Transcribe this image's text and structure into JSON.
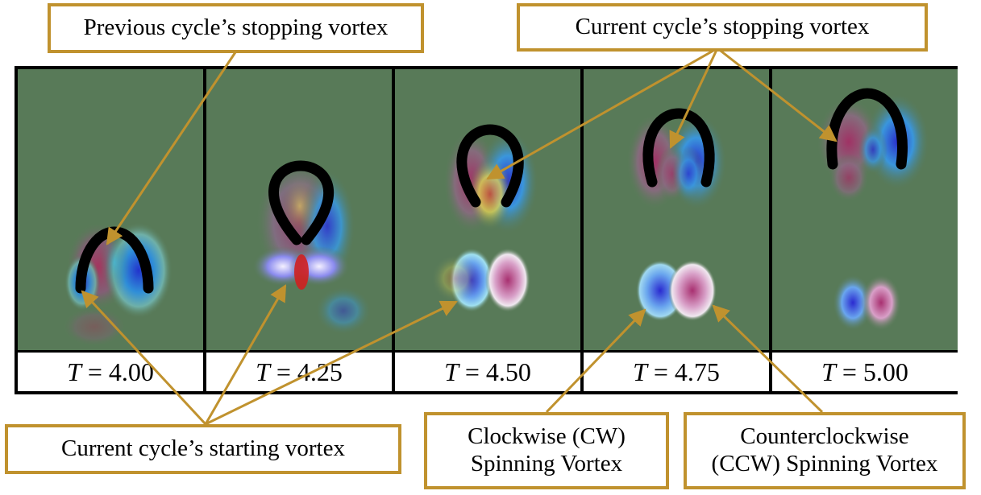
{
  "panels": [
    {
      "label_var": "T",
      "label_eq": " = ",
      "label_value": "4.00"
    },
    {
      "label_var": "T",
      "label_eq": " = ",
      "label_value": "4.25"
    },
    {
      "label_var": "T",
      "label_eq": " = ",
      "label_value": "4.50"
    },
    {
      "label_var": "T",
      "label_eq": " = ",
      "label_value": "4.75"
    },
    {
      "label_var": "T",
      "label_eq": " = ",
      "label_value": "5.00"
    }
  ],
  "callouts": {
    "previous_stopping": "Previous cycle’s stopping vortex",
    "current_stopping": "Current cycle’s stopping vortex",
    "current_starting": "Current cycle’s starting vortex",
    "cw_line1": "Clockwise (CW)",
    "cw_line2": "Spinning Vortex",
    "ccw_line1": "Counterclockwise",
    "ccw_line2": "(CCW) Spinning Vortex"
  },
  "colors": {
    "background_field": "#587a58",
    "callout_border": "#c0922e",
    "arrow": "#c0922e",
    "positive_vorticity": "#b0305a",
    "negative_vorticity": "#2a3ad0",
    "body": "#000000"
  }
}
